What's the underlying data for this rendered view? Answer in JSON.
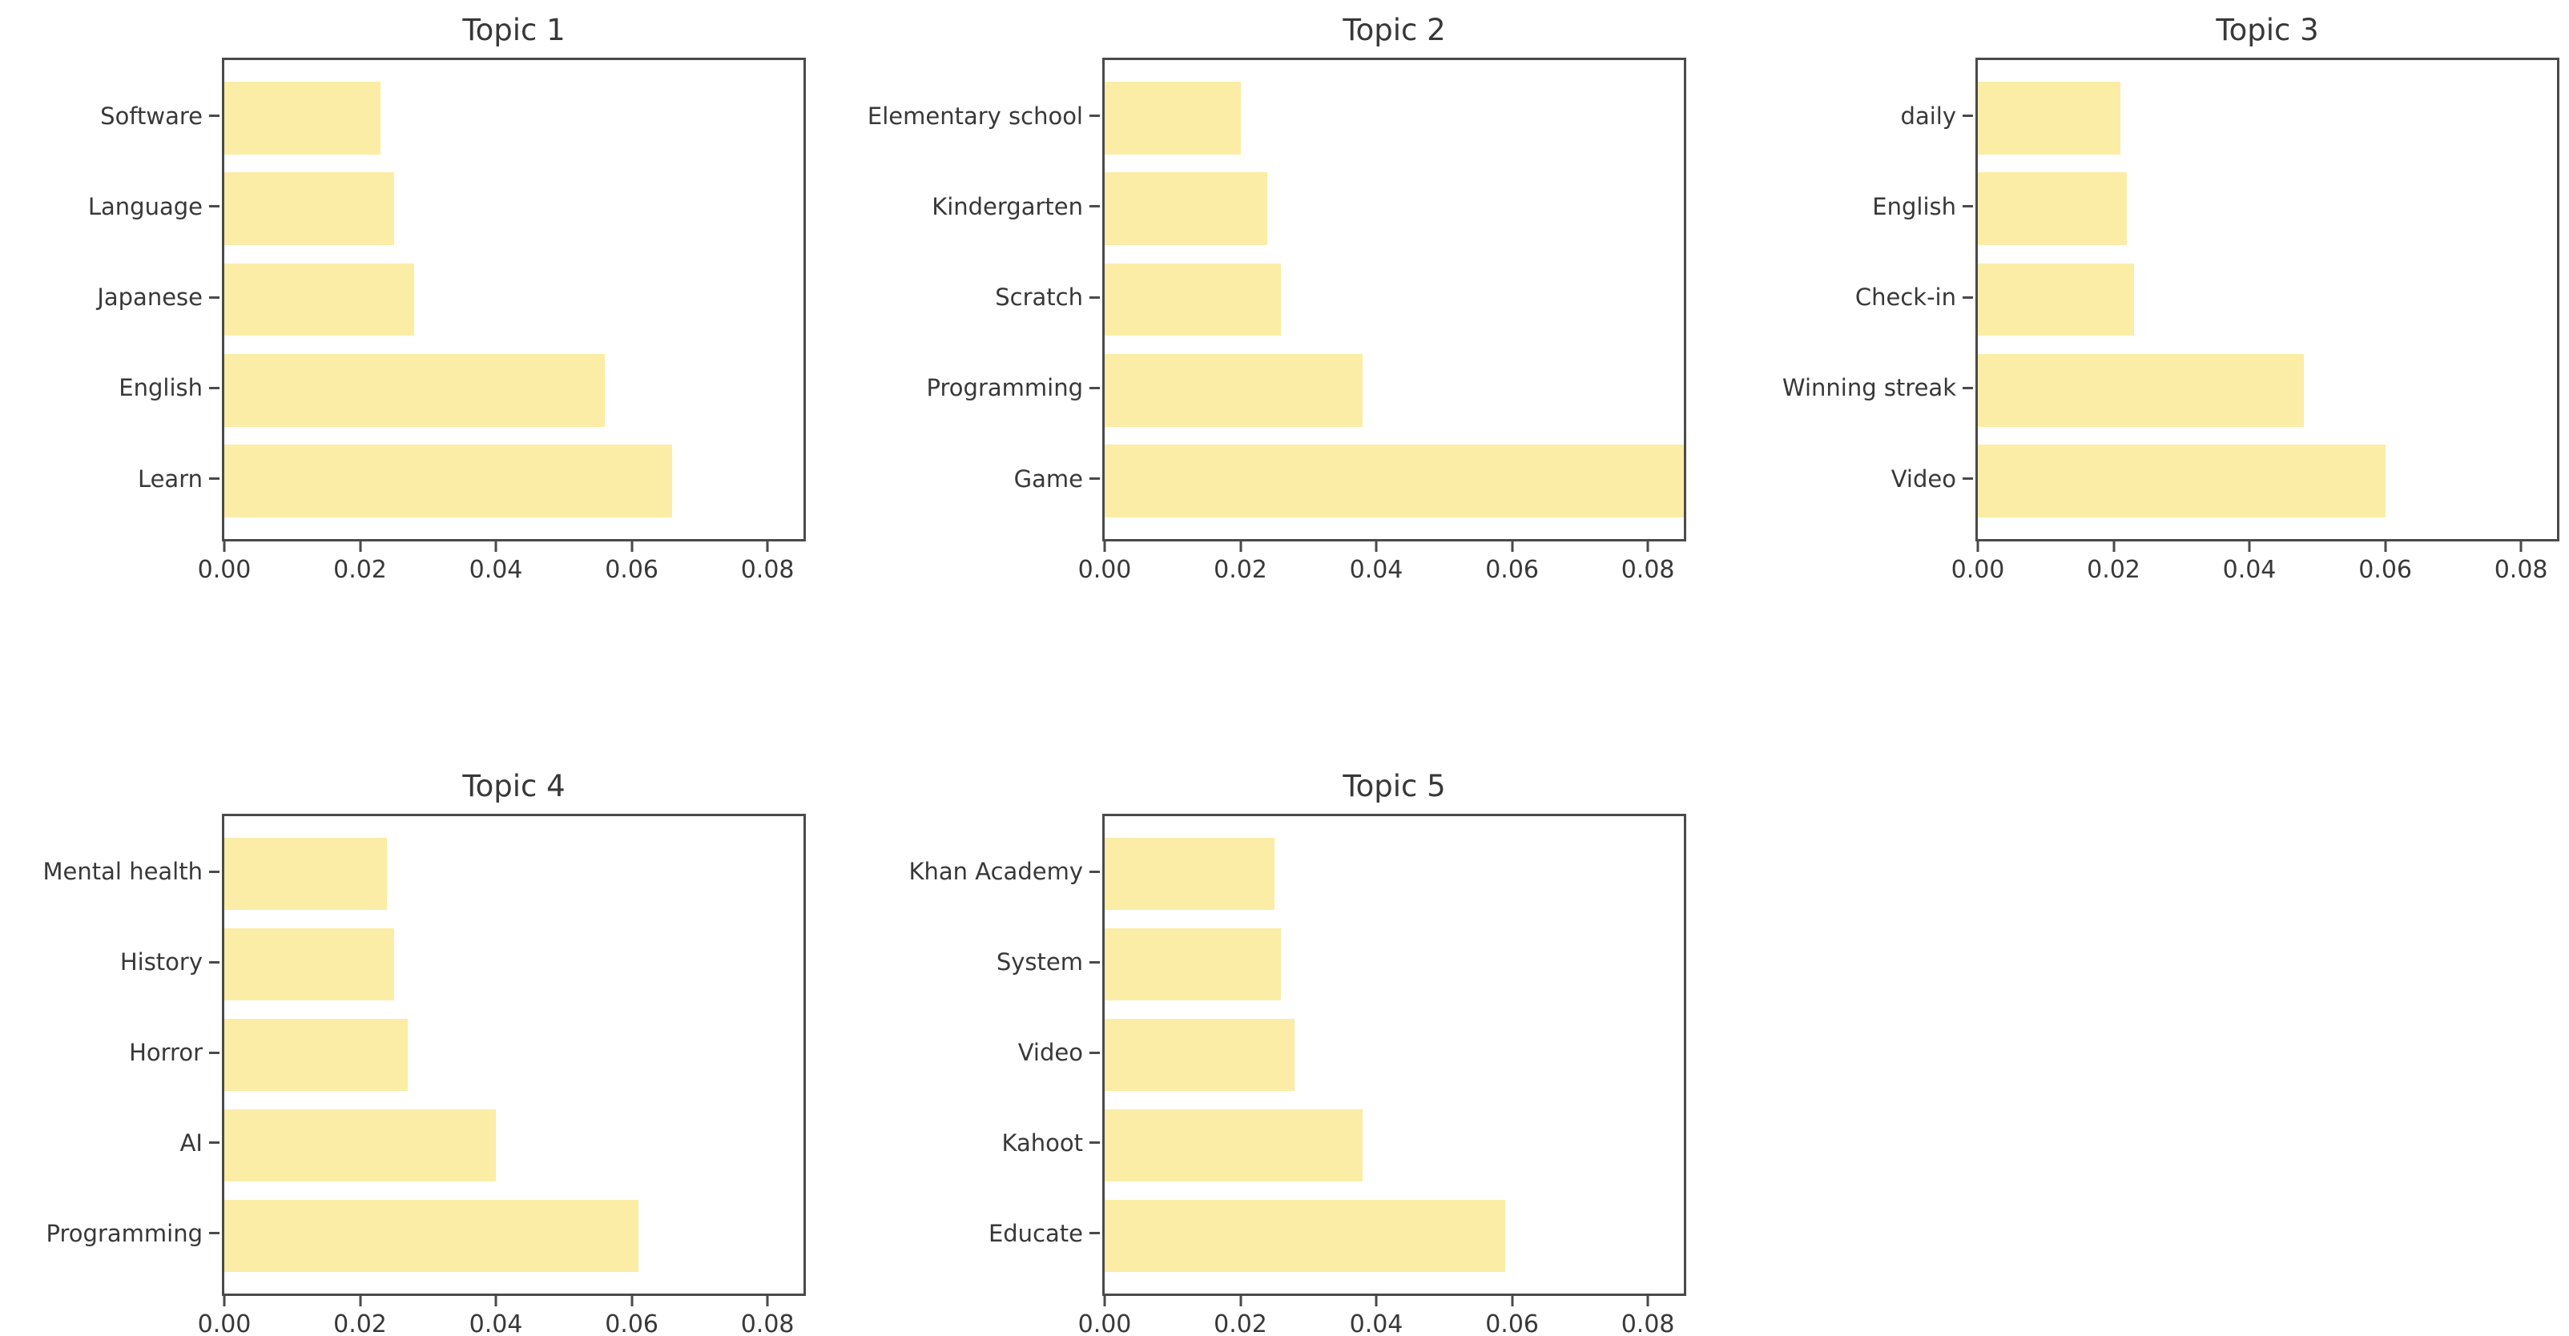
{
  "figure": {
    "background_color": "#FFFFFF",
    "bar_color": "#FBEDA6",
    "axis_color": "#4A4A4A",
    "text_color": "#383838",
    "grid_rows": 2,
    "grid_cols": 3,
    "empty_cells": [
      "row2-col3"
    ]
  },
  "chart_data": [
    {
      "type": "bar",
      "orientation": "horizontal",
      "title": "Topic 1",
      "categories": [
        "Software",
        "Language",
        "Japanese",
        "English",
        "Learn"
      ],
      "values": [
        0.023,
        0.025,
        0.028,
        0.056,
        0.066
      ],
      "xlabel": "",
      "ylabel": "",
      "xlim": [
        0,
        0.0853
      ],
      "xtick_labels": [
        "0.00",
        "0.02",
        "0.04",
        "0.06",
        "0.08"
      ],
      "grid": false,
      "legend": false
    },
    {
      "type": "bar",
      "orientation": "horizontal",
      "title": "Topic 2",
      "categories": [
        "Elementary school",
        "Kindergarten",
        "Scratch",
        "Programming",
        "Game"
      ],
      "values": [
        0.02,
        0.024,
        0.026,
        0.038,
        0.086
      ],
      "xlabel": "",
      "ylabel": "",
      "xlim": [
        0,
        0.0853
      ],
      "xtick_labels": [
        "0.00",
        "0.02",
        "0.04",
        "0.06",
        "0.08"
      ],
      "grid": false,
      "legend": false
    },
    {
      "type": "bar",
      "orientation": "horizontal",
      "title": "Topic 3",
      "categories": [
        "daily",
        "English",
        "Check-in",
        "Winning streak",
        "Video"
      ],
      "values": [
        0.021,
        0.022,
        0.023,
        0.048,
        0.06
      ],
      "xlabel": "",
      "ylabel": "",
      "xlim": [
        0,
        0.0853
      ],
      "xtick_labels": [
        "0.00",
        "0.02",
        "0.04",
        "0.06",
        "0.08"
      ],
      "grid": false,
      "legend": false
    },
    {
      "type": "bar",
      "orientation": "horizontal",
      "title": "Topic 4",
      "categories": [
        "Mental health",
        "History",
        "Horror",
        "AI",
        "Programming"
      ],
      "values": [
        0.024,
        0.025,
        0.027,
        0.04,
        0.061
      ],
      "xlabel": "",
      "ylabel": "",
      "xlim": [
        0,
        0.0853
      ],
      "xtick_labels": [
        "0.00",
        "0.02",
        "0.04",
        "0.06",
        "0.08"
      ],
      "grid": false,
      "legend": false
    },
    {
      "type": "bar",
      "orientation": "horizontal",
      "title": "Topic 5",
      "categories": [
        "Khan Academy",
        "System",
        "Video",
        "Kahoot",
        "Educate"
      ],
      "values": [
        0.025,
        0.026,
        0.028,
        0.038,
        0.059
      ],
      "xlabel": "",
      "ylabel": "",
      "xlim": [
        0,
        0.0853
      ],
      "xtick_labels": [
        "0.00",
        "0.02",
        "0.04",
        "0.06",
        "0.08"
      ],
      "grid": false,
      "legend": false
    }
  ]
}
